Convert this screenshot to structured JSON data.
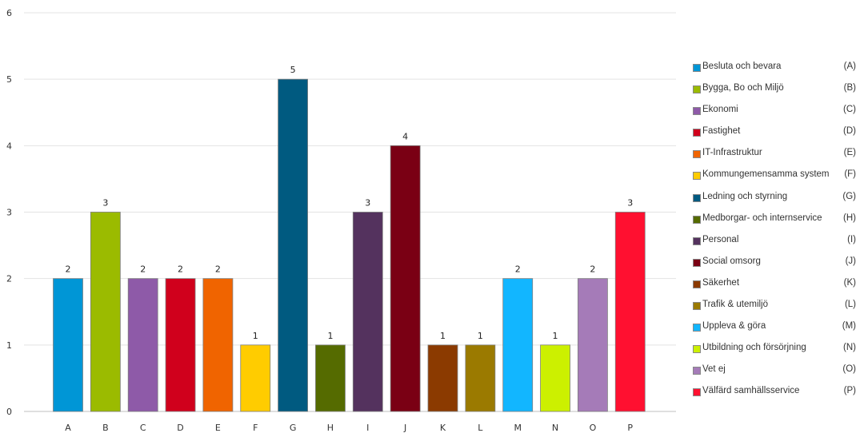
{
  "chart_data": {
    "type": "bar",
    "categories": [
      "A",
      "B",
      "C",
      "D",
      "E",
      "F",
      "G",
      "H",
      "I",
      "J",
      "K",
      "L",
      "M",
      "N",
      "O",
      "P"
    ],
    "values": [
      2,
      3,
      2,
      2,
      2,
      1,
      5,
      1,
      3,
      4,
      1,
      1,
      2,
      1,
      2,
      3
    ],
    "colors": [
      "#0096d6",
      "#9bbb00",
      "#8e5aa8",
      "#d0001c",
      "#f06400",
      "#ffcc00",
      "#005a80",
      "#556b00",
      "#54325e",
      "#7a0014",
      "#8b3a00",
      "#9b7a00",
      "#12b6ff",
      "#ccf000",
      "#a57bb8",
      "#ff1030"
    ],
    "ylim": [
      0,
      6
    ],
    "yticks": [
      0,
      1,
      2,
      3,
      4,
      5,
      6
    ],
    "grid": true,
    "legend_position": "right",
    "legend": [
      {
        "name": "Besluta och bevara",
        "code": "(A)"
      },
      {
        "name": "Bygga, Bo och Miljö",
        "code": "(B)"
      },
      {
        "name": "Ekonomi",
        "code": "(C)"
      },
      {
        "name": "Fastighet",
        "code": "(D)"
      },
      {
        "name": "IT-Infrastruktur",
        "code": "(E)"
      },
      {
        "name": "Kommungemensamma system",
        "code": "(F)"
      },
      {
        "name": "Ledning och styrning",
        "code": "(G)"
      },
      {
        "name": "Medborgar- och internservice",
        "code": "(H)"
      },
      {
        "name": "Personal",
        "code": "(I)"
      },
      {
        "name": "Social omsorg",
        "code": "(J)"
      },
      {
        "name": "Säkerhet",
        "code": "(K)"
      },
      {
        "name": "Trafik & utemiljö",
        "code": "(L)"
      },
      {
        "name": "Uppleva & göra",
        "code": "(M)"
      },
      {
        "name": "Utbildning och försörjning",
        "code": "(N)"
      },
      {
        "name": "Vet ej",
        "code": "(O)"
      },
      {
        "name": "Välfärd samhällsservice",
        "code": "(P)"
      }
    ]
  }
}
